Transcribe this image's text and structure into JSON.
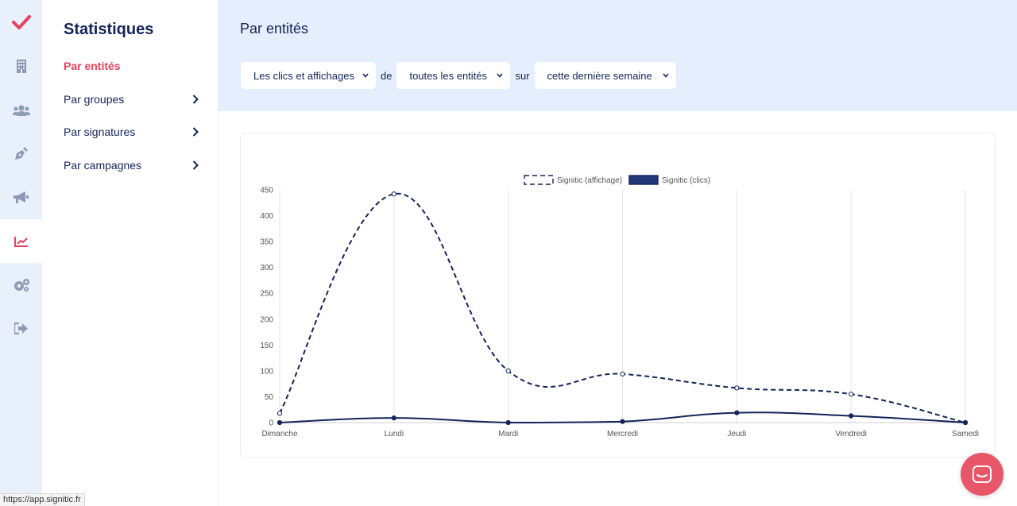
{
  "rail": {
    "items": [
      {
        "icon": "check-logo-icon",
        "color": "#e8405e"
      },
      {
        "icon": "building-icon"
      },
      {
        "icon": "users-icon"
      },
      {
        "icon": "pen-nib-icon"
      },
      {
        "icon": "megaphone-icon"
      },
      {
        "icon": "chart-line-icon",
        "active": true,
        "color": "#e8405e"
      },
      {
        "icon": "cogs-icon"
      },
      {
        "icon": "sign-out-icon"
      }
    ]
  },
  "sidebar": {
    "title": "Statistiques",
    "items": [
      {
        "label": "Par entités",
        "active": true
      },
      {
        "label": "Par groupes"
      },
      {
        "label": "Par signatures"
      },
      {
        "label": "Par campagnes"
      }
    ]
  },
  "header": {
    "title": "Par entités",
    "metric_select": "Les clics et affichages",
    "joiner_1": "de",
    "scope_select": "toutes les entités",
    "joiner_2": "sur",
    "period_select": "cette dernière semaine"
  },
  "chart_data": {
    "type": "line",
    "categories": [
      "Dimanche",
      "Lundi",
      "Mardi",
      "Mercredi",
      "Jeudi",
      "Vendredi",
      "Samedi"
    ],
    "series": [
      {
        "name": "Signitic (affichage)",
        "values": [
          18,
          442,
          100,
          94,
          67,
          55,
          0
        ],
        "color": "#13245a",
        "dashed": true
      },
      {
        "name": "Signitic (clics)",
        "values": [
          0,
          9,
          0,
          2,
          19,
          13,
          0
        ],
        "color": "#13245a",
        "dashed": false
      }
    ],
    "ylim": [
      0,
      450
    ],
    "yticks": [
      0,
      50,
      100,
      150,
      200,
      250,
      300,
      350,
      400,
      450
    ],
    "legend": "top-center",
    "grid": "vertical"
  },
  "status_url": "https://app.signitic.fr",
  "colors": {
    "accent": "#e8405e",
    "navy": "#13245a",
    "header_bg": "#e4eefc",
    "rail_bg": "#e8f0fc"
  }
}
